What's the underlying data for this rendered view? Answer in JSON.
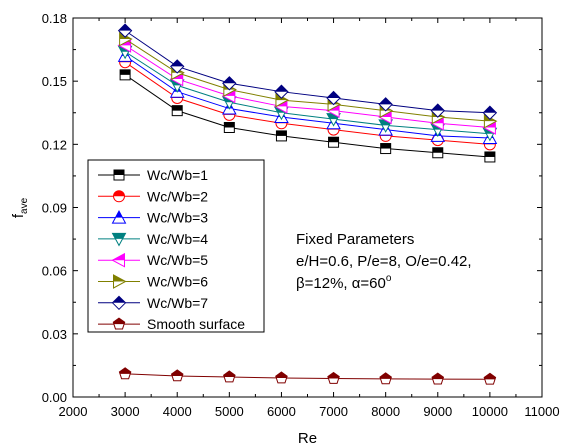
{
  "chart_data": {
    "type": "line",
    "xlabel": "Re",
    "ylabel_main": "f",
    "ylabel_sub": "ave",
    "xlim": [
      2000,
      11000
    ],
    "ylim": [
      0.0,
      0.18
    ],
    "x_ticks": [
      2000,
      3000,
      4000,
      5000,
      6000,
      7000,
      8000,
      9000,
      10000,
      11000
    ],
    "y_ticks": [
      "0.00",
      "0.03",
      "0.06",
      "0.09",
      "0.12",
      "0.15",
      "0.18"
    ],
    "y_tick_values": [
      0.0,
      0.03,
      0.06,
      0.09,
      0.12,
      0.15,
      0.18
    ],
    "x": [
      3000,
      4000,
      5000,
      6000,
      7000,
      8000,
      9000,
      10000
    ],
    "grid": false,
    "legend_position": "left-middle",
    "series": [
      {
        "name": "Wc/Wb=1",
        "marker": "square",
        "color": "#000000",
        "values": [
          0.153,
          0.136,
          0.128,
          0.124,
          0.121,
          0.118,
          0.116,
          0.114
        ]
      },
      {
        "name": "Wc/Wb=2",
        "marker": "circle",
        "color": "#ff0000",
        "values": [
          0.159,
          0.142,
          0.134,
          0.13,
          0.127,
          0.124,
          0.122,
          0.12
        ]
      },
      {
        "name": "Wc/Wb=3",
        "marker": "triangle-up",
        "color": "#0000ff",
        "values": [
          0.162,
          0.145,
          0.137,
          0.133,
          0.13,
          0.127,
          0.124,
          0.123
        ]
      },
      {
        "name": "Wc/Wb=4",
        "marker": "triangle-down",
        "color": "#008080",
        "values": [
          0.164,
          0.148,
          0.14,
          0.135,
          0.132,
          0.129,
          0.127,
          0.125
        ]
      },
      {
        "name": "Wc/Wb=5",
        "marker": "triangle-left",
        "color": "#ff00ff",
        "values": [
          0.167,
          0.151,
          0.143,
          0.138,
          0.136,
          0.133,
          0.13,
          0.128
        ]
      },
      {
        "name": "Wc/Wb=6",
        "marker": "triangle-right",
        "color": "#808000",
        "values": [
          0.17,
          0.154,
          0.146,
          0.141,
          0.139,
          0.136,
          0.133,
          0.131
        ]
      },
      {
        "name": "Wc/Wb=7",
        "marker": "diamond",
        "color": "#000080",
        "values": [
          0.174,
          0.157,
          0.149,
          0.145,
          0.142,
          0.139,
          0.136,
          0.135
        ]
      },
      {
        "name": "Smooth surface",
        "marker": "pentagon",
        "color": "#800000",
        "values": [
          0.011,
          0.01,
          0.0095,
          0.009,
          0.0088,
          0.0086,
          0.0085,
          0.0084
        ]
      }
    ],
    "annotation": {
      "line1": "Fixed Parameters",
      "line2": "e/H=0.6, P/e=8, O/e=0.42,",
      "line3_beta": "β=12%, α=60",
      "line3_sup": "o"
    }
  }
}
